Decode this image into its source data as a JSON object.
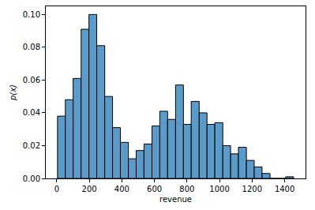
{
  "chart_data": {
    "type": "histogram",
    "x_label": "revenue",
    "y_label": "p(x)",
    "bins": [
      5,
      53,
      101,
      150,
      198,
      246,
      295,
      343,
      391,
      440,
      488,
      536,
      585,
      633,
      681,
      730,
      778,
      826,
      875,
      923,
      971,
      1020,
      1068,
      1116,
      1165,
      1213,
      1261,
      1310,
      1358,
      1406,
      1455
    ],
    "values": [
      0.038,
      0.048,
      0.061,
      0.091,
      0.1,
      0.081,
      0.05,
      0.031,
      0.022,
      0.012,
      0.017,
      0.021,
      0.032,
      0.041,
      0.036,
      0.057,
      0.033,
      0.047,
      0.04,
      0.033,
      0.034,
      0.02,
      0.015,
      0.019,
      0.011,
      0.007,
      0.003,
      0,
      0,
      0.001
    ],
    "color": "#5b9bc9",
    "xlim": [
      -67,
      1528
    ],
    "xticks": [
      0,
      200,
      400,
      600,
      800,
      1000,
      1200,
      1400
    ],
    "ylim": [
      0,
      0.105
    ],
    "yticks": [
      {
        "value": 0,
        "label": "0.00"
      },
      {
        "value": 0.02,
        "label": "0.02"
      },
      {
        "value": 0.04,
        "label": "0.04"
      },
      {
        "value": 0.06,
        "label": "0.06"
      },
      {
        "value": 0.08,
        "label": "0.08"
      },
      {
        "value": 0.1,
        "label": "0.10"
      }
    ],
    "grid": false
  }
}
